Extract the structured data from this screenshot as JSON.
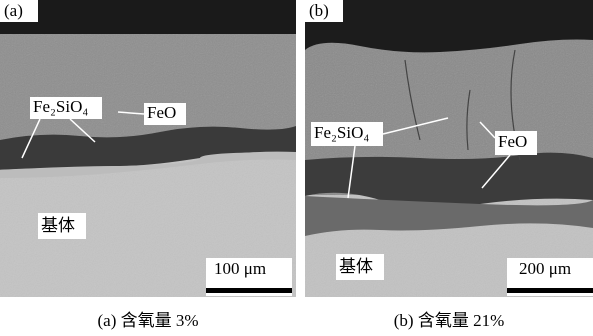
{
  "panels": [
    {
      "label": "(a)",
      "annotations": {
        "oxide": "Fe₂SiO₄",
        "feo": "FeO",
        "substrate": "基体"
      },
      "scale_bar": "100 μm",
      "caption": "(a) 含氧量 3%"
    },
    {
      "label": "(b)",
      "annotations": {
        "oxide": "Fe₂SiO₄",
        "feo": "FeO",
        "substrate": "基体"
      },
      "scale_bar": "200 μm",
      "caption": "(b) 含氧量 21%"
    }
  ]
}
